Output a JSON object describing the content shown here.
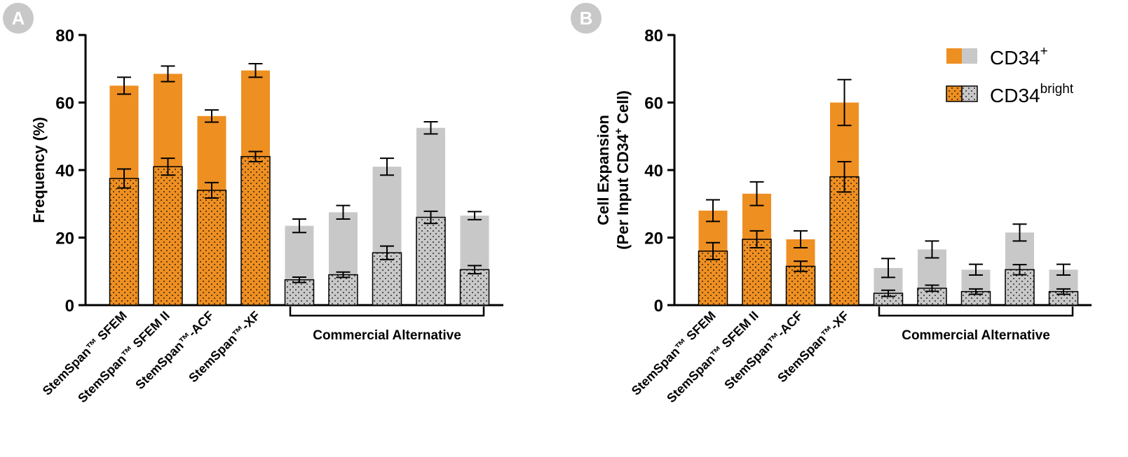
{
  "colors": {
    "orange": "#ee8f22",
    "gray": "#c8c8c8",
    "dot": "#000000"
  },
  "panels": [
    {
      "letter": "A"
    },
    {
      "letter": "B"
    }
  ],
  "legend": {
    "entries": [
      {
        "base": "CD34",
        "sup": "+"
      },
      {
        "base": "CD34",
        "sup": "bright"
      }
    ]
  },
  "chart_data": [
    {
      "type": "bar",
      "panel": "A",
      "stacked": "overlay",
      "ylabel": "Frequency (%)",
      "ylim": [
        0,
        80
      ],
      "yticks": [
        "0",
        "20",
        "40",
        "60",
        "80"
      ],
      "categories": [
        "StemSpan™ SFEM",
        "StemSpan™ SFEM II",
        "StemSpan™-ACF",
        "StemSpan™-XF",
        "",
        "",
        "",
        "",
        ""
      ],
      "group_label": "Commercial Alternative",
      "group_range": [
        4,
        8
      ],
      "series": [
        {
          "name": "CD34+",
          "values": [
            65,
            68.5,
            56,
            69.5,
            23.5,
            27.5,
            41,
            52.5,
            26.5
          ],
          "errors": [
            2.5,
            2.3,
            1.8,
            2.0,
            2.0,
            2.0,
            2.5,
            1.8,
            1.2
          ]
        },
        {
          "name": "CD34bright",
          "values": [
            37.5,
            41,
            34,
            44,
            7.5,
            9,
            15.5,
            26,
            10.5
          ],
          "errors": [
            2.8,
            2.5,
            2.3,
            1.5,
            0.8,
            0.8,
            2.0,
            1.8,
            1.2
          ]
        }
      ]
    },
    {
      "type": "bar",
      "panel": "B",
      "stacked": "overlay",
      "ylabel_line1": "Cell Expansion",
      "ylabel_line2_base": "(Per Input CD34",
      "ylabel_line2_sup": "+",
      "ylabel_line2_end": " Cell)",
      "ylim": [
        0,
        80
      ],
      "yticks": [
        "0",
        "20",
        "40",
        "60",
        "80"
      ],
      "categories": [
        "StemSpan™ SFEM",
        "StemSpan™ SFEM II",
        "StemSpan™-ACF",
        "StemSpan™-XF",
        "",
        "",
        "",
        "",
        ""
      ],
      "group_label": "Commercial Alternative",
      "group_range": [
        4,
        8
      ],
      "series": [
        {
          "name": "CD34+",
          "values": [
            28,
            33,
            19.5,
            60,
            11,
            16.5,
            10.5,
            21.5,
            10.5
          ],
          "errors": [
            3.2,
            3.5,
            2.5,
            6.8,
            2.8,
            2.5,
            1.6,
            2.5,
            1.6
          ]
        },
        {
          "name": "CD34bright",
          "values": [
            16,
            19.5,
            11.5,
            38,
            3.5,
            5,
            4,
            10.5,
            4
          ],
          "errors": [
            2.5,
            2.5,
            1.5,
            4.5,
            0.9,
            0.9,
            0.8,
            1.5,
            0.8
          ]
        }
      ]
    }
  ]
}
